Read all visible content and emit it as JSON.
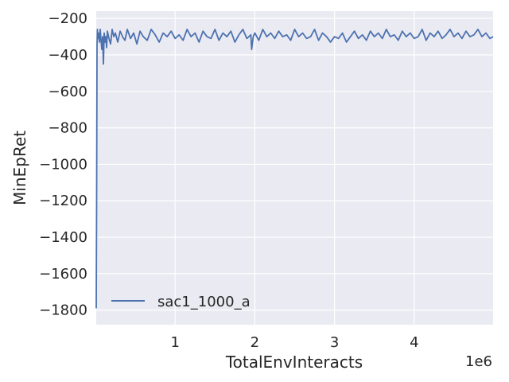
{
  "chart_data": {
    "type": "line",
    "title": "",
    "xlabel": "TotalEnvInteracts",
    "ylabel": "MinEpRet",
    "x_offset_label": "1e6",
    "xlim": [
      0.01,
      4.99
    ],
    "ylim": [
      -1880,
      -160
    ],
    "x_ticks": [
      1,
      2,
      3,
      4
    ],
    "x_tick_labels": [
      "1",
      "2",
      "3",
      "4"
    ],
    "y_ticks": [
      -1800,
      -1600,
      -1400,
      -1200,
      -1000,
      -800,
      -600,
      -400,
      -200
    ],
    "y_tick_labels": [
      "−1800",
      "−1600",
      "−1400",
      "−1200",
      "−1000",
      "−800",
      "−600",
      "−400",
      "−200"
    ],
    "grid": true,
    "legend_position": "lower-left",
    "background_color": "#eaeaf2",
    "series": [
      {
        "name": "sac1_1000_a",
        "color": "#4c72b0",
        "x": [
          0.01,
          0.015,
          0.02,
          0.025,
          0.03,
          0.04,
          0.05,
          0.06,
          0.07,
          0.08,
          0.09,
          0.1,
          0.11,
          0.12,
          0.13,
          0.14,
          0.15,
          0.17,
          0.19,
          0.21,
          0.23,
          0.25,
          0.28,
          0.31,
          0.34,
          0.37,
          0.4,
          0.44,
          0.48,
          0.52,
          0.56,
          0.6,
          0.65,
          0.7,
          0.75,
          0.8,
          0.85,
          0.9,
          0.95,
          1.0,
          1.05,
          1.1,
          1.15,
          1.2,
          1.25,
          1.3,
          1.35,
          1.4,
          1.45,
          1.5,
          1.55,
          1.6,
          1.65,
          1.7,
          1.75,
          1.8,
          1.85,
          1.9,
          1.95,
          1.96,
          1.98,
          2.0,
          2.05,
          2.1,
          2.15,
          2.2,
          2.25,
          2.3,
          2.35,
          2.4,
          2.45,
          2.5,
          2.55,
          2.6,
          2.65,
          2.7,
          2.75,
          2.8,
          2.85,
          2.9,
          2.95,
          3.0,
          3.05,
          3.1,
          3.15,
          3.2,
          3.25,
          3.3,
          3.35,
          3.4,
          3.45,
          3.5,
          3.55,
          3.6,
          3.65,
          3.7,
          3.75,
          3.8,
          3.85,
          3.9,
          3.95,
          4.0,
          4.05,
          4.1,
          4.15,
          4.2,
          4.25,
          4.3,
          4.35,
          4.4,
          4.45,
          4.5,
          4.55,
          4.6,
          4.65,
          4.7,
          4.75,
          4.8,
          4.85,
          4.9,
          4.95,
          4.99
        ],
        "y": [
          -1790,
          -1200,
          -350,
          -260,
          -310,
          -280,
          -330,
          -260,
          -320,
          -370,
          -300,
          -450,
          -280,
          -330,
          -300,
          -360,
          -270,
          -310,
          -340,
          -260,
          -300,
          -280,
          -330,
          -270,
          -300,
          -320,
          -260,
          -310,
          -280,
          -340,
          -270,
          -300,
          -320,
          -260,
          -290,
          -330,
          -280,
          -300,
          -270,
          -310,
          -290,
          -320,
          -260,
          -300,
          -280,
          -330,
          -270,
          -300,
          -310,
          -260,
          -320,
          -280,
          -300,
          -270,
          -330,
          -290,
          -260,
          -310,
          -290,
          -370,
          -300,
          -280,
          -320,
          -260,
          -300,
          -280,
          -310,
          -270,
          -300,
          -290,
          -320,
          -260,
          -300,
          -280,
          -310,
          -300,
          -260,
          -320,
          -280,
          -300,
          -330,
          -300,
          -310,
          -280,
          -330,
          -300,
          -270,
          -310,
          -290,
          -320,
          -270,
          -300,
          -280,
          -310,
          -260,
          -300,
          -290,
          -320,
          -270,
          -300,
          -280,
          -310,
          -300,
          -260,
          -320,
          -280,
          -300,
          -270,
          -310,
          -290,
          -260,
          -300,
          -280,
          -310,
          -270,
          -300,
          -290,
          -260,
          -300,
          -280,
          -310,
          -300
        ]
      }
    ]
  }
}
